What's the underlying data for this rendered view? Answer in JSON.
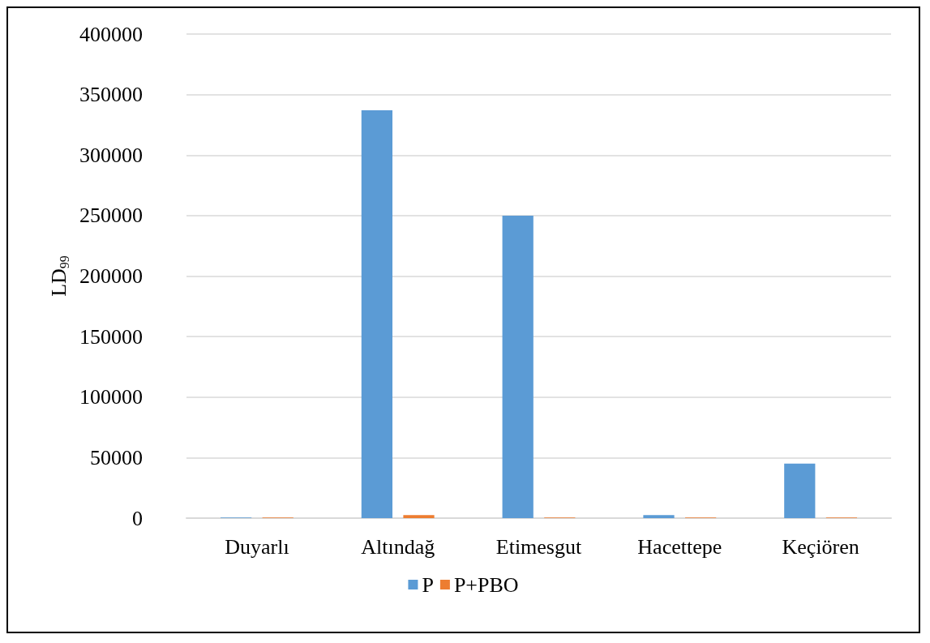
{
  "chart_data": {
    "type": "bar",
    "ylabel": "LD$_{99}$",
    "categories": [
      "Duyarlı",
      "Altındağ",
      "Etimesgut",
      "Hacettepe",
      "Keçiören"
    ],
    "series": [
      {
        "name": "P",
        "color": "#5b9bd5",
        "values": [
          500,
          337000,
          250000,
          2500,
          45000
        ]
      },
      {
        "name": "P+PBO",
        "color": "#ed7d31",
        "values": [
          500,
          2500,
          500,
          500,
          500
        ]
      }
    ],
    "ylim": [
      0,
      400000
    ],
    "yticks": [
      0,
      50000,
      100000,
      150000,
      200000,
      250000,
      300000,
      350000,
      400000
    ],
    "grid": "y",
    "legend": "bottom"
  }
}
